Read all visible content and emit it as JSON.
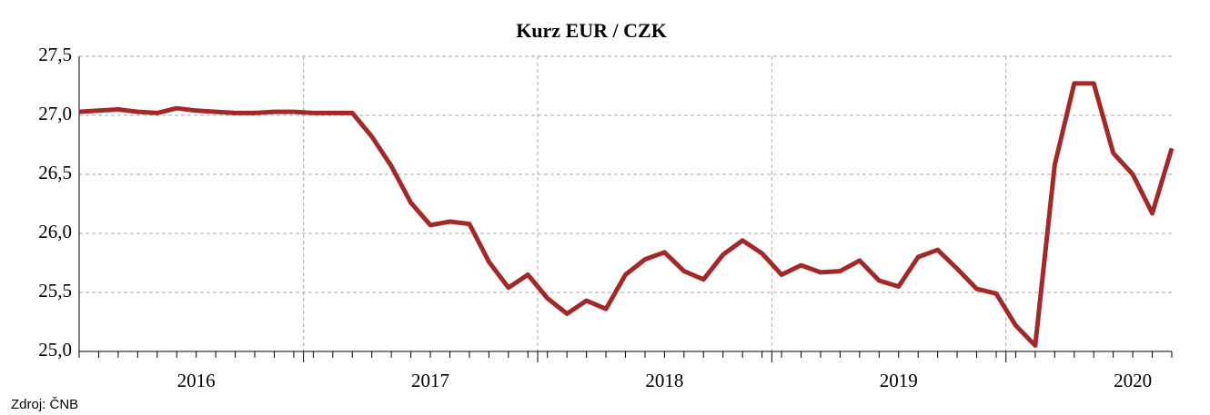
{
  "chart_data": {
    "type": "line",
    "title": "Kurz EUR / CZK",
    "source": "Zdroj: ČNB",
    "categories": [
      null,
      null,
      null,
      null,
      null,
      null,
      "2016",
      null,
      null,
      null,
      null,
      null,
      null,
      null,
      null,
      null,
      null,
      null,
      "2017",
      null,
      null,
      null,
      null,
      null,
      null,
      null,
      null,
      null,
      null,
      null,
      "2018",
      null,
      null,
      null,
      null,
      null,
      null,
      null,
      null,
      null,
      null,
      null,
      "2019",
      null,
      null,
      null,
      null,
      null,
      null,
      null,
      null,
      null,
      null,
      null,
      "2020",
      null,
      null
    ],
    "series": [
      {
        "name": "EUR/CZK",
        "color": "#a42828",
        "values": [
          27.03,
          27.04,
          27.05,
          27.03,
          27.02,
          27.06,
          27.04,
          27.03,
          27.02,
          27.02,
          27.03,
          27.03,
          27.02,
          27.02,
          27.02,
          26.82,
          26.57,
          26.26,
          26.07,
          26.1,
          26.08,
          25.76,
          25.54,
          25.65,
          25.45,
          25.32,
          25.43,
          25.36,
          25.65,
          25.78,
          25.84,
          25.68,
          25.61,
          25.82,
          25.94,
          25.83,
          25.65,
          25.73,
          25.67,
          25.68,
          25.77,
          25.6,
          25.55,
          25.8,
          25.86,
          25.7,
          25.53,
          25.49,
          25.22,
          25.05,
          26.58,
          27.27,
          27.27,
          26.68,
          26.5,
          26.17,
          26.72
        ]
      }
    ],
    "ylim": [
      25,
      27.5
    ],
    "yticks": [
      {
        "value": 25,
        "label": "25,0"
      },
      {
        "value": 25.5,
        "label": "25,5"
      },
      {
        "value": 26,
        "label": "26,0"
      },
      {
        "value": 26.5,
        "label": "26,5"
      },
      {
        "value": 27,
        "label": "27,0"
      },
      {
        "value": 27.5,
        "label": "27,5"
      }
    ],
    "grid": true
  }
}
